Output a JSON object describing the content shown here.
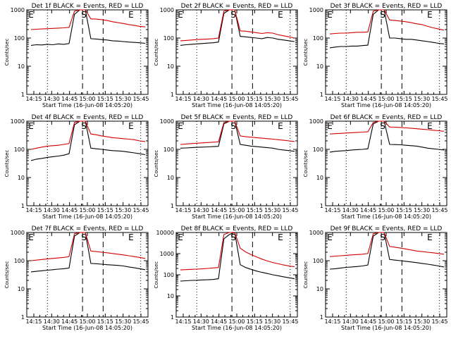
{
  "chart_data": [
    {
      "type": "line",
      "title": "Det 1f BLACK = Events, RED = LLD",
      "xlabel": "Start Time (16-Jun-08 14:05:20)",
      "ylabel": "Counts/sec",
      "yscale": "log",
      "ylim": [
        1,
        1000
      ],
      "x_ticks": [
        "14:15",
        "14:30",
        "14:45",
        "15:00",
        "15:15",
        "15:30",
        "15:45"
      ],
      "y_ticks": [
        "1",
        "10",
        "100",
        "1000"
      ],
      "markers": [
        "E",
        "S",
        "E"
      ],
      "series": [
        {
          "name": "Events",
          "color": "#000000",
          "values": [
            55,
            58,
            57,
            60,
            58,
            62,
            60,
            64,
            700,
            1000,
            1000,
            95,
            92,
            88,
            85,
            80,
            78,
            75,
            72,
            70,
            68,
            65
          ]
        },
        {
          "name": "LLD",
          "color": "#d40000",
          "values": [
            200,
            205,
            210,
            215,
            220,
            225,
            230,
            240,
            900,
            1000,
            1000,
            480,
            470,
            450,
            420,
            380,
            350,
            330,
            300,
            280,
            260,
            250
          ]
        }
      ]
    },
    {
      "type": "line",
      "title": "Det 2f BLACK = Events, RED = LLD",
      "xlabel": "Start Time (16-Jun-08 14:05:20)",
      "ylabel": "Counts/sec",
      "yscale": "log",
      "ylim": [
        1,
        1000
      ],
      "x_ticks": [
        "14:15",
        "14:30",
        "14:45",
        "15:00",
        "15:15",
        "15:30",
        "15:45"
      ],
      "y_ticks": [
        "1",
        "10",
        "100",
        "1000"
      ],
      "markers": [
        "E",
        "S",
        "E"
      ],
      "series": [
        {
          "name": "Events",
          "color": "#000000",
          "values": [
            55,
            58,
            60,
            62,
            64,
            66,
            68,
            72,
            750,
            1000,
            1000,
            115,
            110,
            105,
            100,
            95,
            105,
            100,
            90,
            85,
            80,
            75
          ]
        },
        {
          "name": "LLD",
          "color": "#d40000",
          "values": [
            80,
            82,
            85,
            88,
            90,
            92,
            95,
            100,
            900,
            1000,
            1000,
            180,
            175,
            165,
            155,
            145,
            155,
            150,
            130,
            120,
            110,
            100
          ]
        }
      ]
    },
    {
      "type": "line",
      "title": "Det 3f BLACK = Events, RED = LLD",
      "xlabel": "Start Time (16-Jun-08 14:05:20)",
      "ylabel": "Counts/sec",
      "yscale": "log",
      "ylim": [
        1,
        1000
      ],
      "x_ticks": [
        "14:15",
        "14:30",
        "14:45",
        "15:00",
        "15:15",
        "15:30",
        "15:45"
      ],
      "y_ticks": [
        "1",
        "10",
        "100",
        "1000"
      ],
      "markers": [
        "E",
        "S",
        "E"
      ],
      "series": [
        {
          "name": "Events",
          "color": "#000000",
          "values": [
            45,
            48,
            50,
            50,
            52,
            52,
            54,
            56,
            700,
            1000,
            1000,
            100,
            100,
            95,
            90,
            90,
            85,
            80,
            75,
            70,
            65,
            62
          ]
        },
        {
          "name": "LLD",
          "color": "#d40000",
          "values": [
            140,
            145,
            150,
            150,
            155,
            160,
            160,
            165,
            900,
            1000,
            1000,
            440,
            420,
            400,
            380,
            350,
            320,
            300,
            260,
            230,
            210,
            190
          ]
        }
      ]
    },
    {
      "type": "line",
      "title": "Det 4f BLACK = Events, RED = LLD",
      "xlabel": "Start Time (16-Jun-08 14:05:20)",
      "ylabel": "Counts/sec",
      "yscale": "log",
      "ylim": [
        1,
        1000
      ],
      "x_ticks": [
        "14:15",
        "14:30",
        "14:45",
        "15:00",
        "15:15",
        "15:30",
        "15:45"
      ],
      "y_ticks": [
        "1",
        "10",
        "100",
        "1000"
      ],
      "markers": [
        "E",
        "S",
        "E"
      ],
      "series": [
        {
          "name": "Events",
          "color": "#000000",
          "values": [
            40,
            45,
            48,
            52,
            55,
            58,
            62,
            70,
            750,
            1000,
            1000,
            110,
            105,
            100,
            95,
            90,
            88,
            85,
            80,
            75,
            70,
            65
          ]
        },
        {
          "name": "LLD",
          "color": "#d40000",
          "values": [
            100,
            110,
            120,
            130,
            135,
            140,
            150,
            160,
            900,
            1000,
            1000,
            350,
            330,
            300,
            280,
            260,
            250,
            240,
            230,
            220,
            200,
            190
          ]
        }
      ]
    },
    {
      "type": "line",
      "title": "Det 5f BLACK = Events, RED = LLD",
      "xlabel": "Start Time (16-Jun-08 14:05:20)",
      "ylabel": "Counts/sec",
      "yscale": "log",
      "ylim": [
        1,
        1000
      ],
      "x_ticks": [
        "14:15",
        "14:30",
        "14:45",
        "15:00",
        "15:15",
        "15:30",
        "15:45"
      ],
      "y_ticks": [
        "1",
        "10",
        "100",
        "1000"
      ],
      "markers": [
        "E",
        "S",
        "E"
      ],
      "series": [
        {
          "name": "Events",
          "color": "#000000",
          "values": [
            110,
            112,
            115,
            118,
            120,
            122,
            125,
            128,
            800,
            1000,
            1000,
            150,
            140,
            130,
            125,
            120,
            115,
            110,
            100,
            95,
            90,
            85
          ]
        },
        {
          "name": "LLD",
          "color": "#d40000",
          "values": [
            150,
            155,
            160,
            165,
            170,
            175,
            180,
            185,
            900,
            1000,
            1000,
            300,
            280,
            270,
            260,
            250,
            240,
            230,
            220,
            210,
            200,
            190
          ]
        }
      ]
    },
    {
      "type": "line",
      "title": "Det 6f BLACK = Events, RED = LLD",
      "xlabel": "Start Time (16-Jun-08 14:05:20)",
      "ylabel": "Counts/sec",
      "yscale": "log",
      "ylim": [
        1,
        1000
      ],
      "x_ticks": [
        "14:15",
        "14:30",
        "14:45",
        "15:00",
        "15:15",
        "15:30",
        "15:45"
      ],
      "y_ticks": [
        "1",
        "10",
        "100",
        "1000"
      ],
      "markers": [
        "E",
        "S",
        "E"
      ],
      "series": [
        {
          "name": "Events",
          "color": "#000000",
          "values": [
            80,
            85,
            88,
            90,
            95,
            98,
            100,
            105,
            800,
            1000,
            1000,
            150,
            148,
            145,
            140,
            135,
            130,
            120,
            110,
            105,
            100,
            95
          ]
        },
        {
          "name": "LLD",
          "color": "#d40000",
          "values": [
            350,
            360,
            370,
            380,
            390,
            400,
            410,
            420,
            900,
            1000,
            1000,
            620,
            610,
            600,
            580,
            560,
            540,
            520,
            500,
            480,
            460,
            440
          ]
        }
      ]
    },
    {
      "type": "line",
      "title": "Det 7f BLACK = Events, RED = LLD",
      "xlabel": "Start Time (16-Jun-08 14:05:20)",
      "ylabel": "Counts/sec",
      "yscale": "log",
      "ylim": [
        1,
        1000
      ],
      "x_ticks": [
        "14:15",
        "14:30",
        "14:45",
        "15:00",
        "15:15",
        "15:30",
        "15:45"
      ],
      "y_ticks": [
        "1",
        "10",
        "100",
        "1000"
      ],
      "markers": [
        "E",
        "S",
        "E"
      ],
      "series": [
        {
          "name": "Events",
          "color": "#000000",
          "values": [
            40,
            42,
            44,
            46,
            48,
            50,
            52,
            55,
            750,
            1000,
            1000,
            80,
            78,
            75,
            72,
            70,
            68,
            65,
            60,
            56,
            52,
            48
          ]
        },
        {
          "name": "LLD",
          "color": "#d40000",
          "values": [
            100,
            105,
            110,
            115,
            120,
            125,
            130,
            140,
            900,
            1000,
            1000,
            220,
            210,
            200,
            190,
            180,
            170,
            160,
            150,
            140,
            130,
            120
          ]
        }
      ]
    },
    {
      "type": "line",
      "title": "Det 8f BLACK = Events, RED = LLD",
      "xlabel": "Start Time (16-Jun-08 14:05:20)",
      "ylabel": "Counts/sec",
      "yscale": "log",
      "ylim": [
        1,
        10000
      ],
      "x_ticks": [
        "14:15",
        "14:30",
        "14:45",
        "15:00",
        "15:15",
        "15:30",
        "15:45"
      ],
      "y_ticks": [
        "1",
        "10",
        "100",
        "1000",
        "10000"
      ],
      "markers": [
        "E",
        "S",
        "E"
      ],
      "series": [
        {
          "name": "Events",
          "color": "#000000",
          "values": [
            50,
            52,
            54,
            55,
            57,
            58,
            60,
            65,
            5000,
            8000,
            10000,
            300,
            220,
            180,
            150,
            130,
            115,
            100,
            90,
            80,
            72,
            65
          ]
        },
        {
          "name": "LLD",
          "color": "#d40000",
          "values": [
            170,
            175,
            180,
            185,
            190,
            200,
            210,
            220,
            8000,
            10000,
            10000,
            1800,
            1200,
            900,
            700,
            550,
            450,
            380,
            330,
            290,
            260,
            240
          ]
        }
      ]
    },
    {
      "type": "line",
      "title": "Det 9f BLACK = Events, RED = LLD",
      "xlabel": "Start Time (16-Jun-08 14:05:20)",
      "ylabel": "Counts/sec",
      "yscale": "log",
      "ylim": [
        1,
        1000
      ],
      "x_ticks": [
        "14:15",
        "14:30",
        "14:45",
        "15:00",
        "15:15",
        "15:30",
        "15:45"
      ],
      "y_ticks": [
        "1",
        "10",
        "100",
        "1000"
      ],
      "markers": [
        "E",
        "S",
        "E"
      ],
      "series": [
        {
          "name": "Events",
          "color": "#000000",
          "values": [
            50,
            52,
            55,
            58,
            60,
            62,
            65,
            70,
            750,
            1000,
            1000,
            110,
            105,
            100,
            95,
            90,
            85,
            80,
            75,
            70,
            65,
            60
          ]
        },
        {
          "name": "LLD",
          "color": "#d40000",
          "values": [
            140,
            145,
            150,
            155,
            160,
            165,
            170,
            180,
            900,
            1000,
            1000,
            320,
            300,
            280,
            260,
            240,
            220,
            210,
            200,
            190,
            180,
            170
          ]
        }
      ]
    }
  ]
}
